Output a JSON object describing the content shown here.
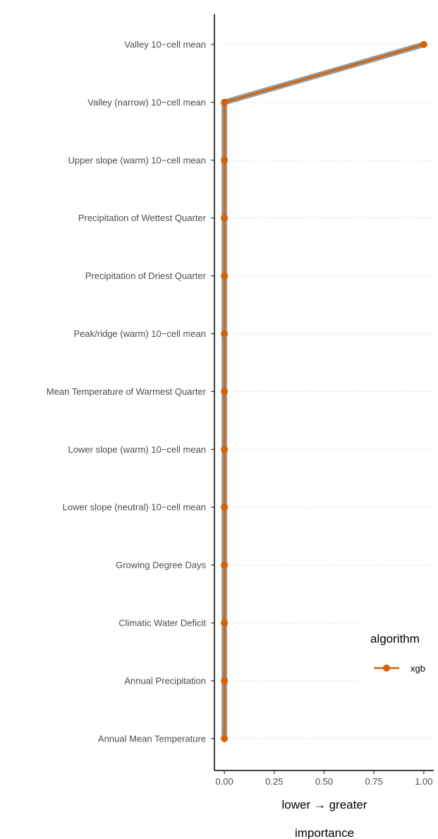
{
  "chart_data": {
    "type": "line",
    "orientation": "horizontal",
    "categories": [
      "Valley 10−cell mean",
      "Valley (narrow) 10−cell mean",
      "Upper slope (warm) 10−cell mean",
      "Precipitation of Wettest Quarter",
      "Precipitation of Driest Quarter",
      "Peak/ridge (warm) 10−cell mean",
      "Mean Temperature of Warmest Quarter",
      "Lower slope (warm) 10−cell mean",
      "Lower slope (neutral) 10−cell mean",
      "Growing Degree Days",
      "Climatic Water Deficit",
      "Annual Precipitation",
      "Annual Mean Temperature"
    ],
    "series": [
      {
        "name": "xgb",
        "color": "#d95f02",
        "values": [
          1.0,
          0.0,
          0.0,
          0.0,
          0.0,
          0.0,
          0.0,
          0.0,
          0.0,
          0.0,
          0.0,
          0.0,
          0.0
        ]
      }
    ],
    "xlim": [
      -0.05,
      1.05
    ],
    "x_ticks": [
      0,
      0.25,
      0.5,
      0.75,
      1
    ],
    "x_tick_labels": [
      "0.00",
      "0.25",
      "0.50",
      "0.75",
      "1.00"
    ],
    "xlabel_line1": "lower → greater",
    "xlabel_line2": "importance",
    "legend": {
      "title": "algorithm",
      "position": "right",
      "items": [
        {
          "label": "xgb",
          "color": "#d95f02"
        }
      ]
    },
    "grid": "dotted horizontal",
    "shadow_color": "#999999"
  }
}
